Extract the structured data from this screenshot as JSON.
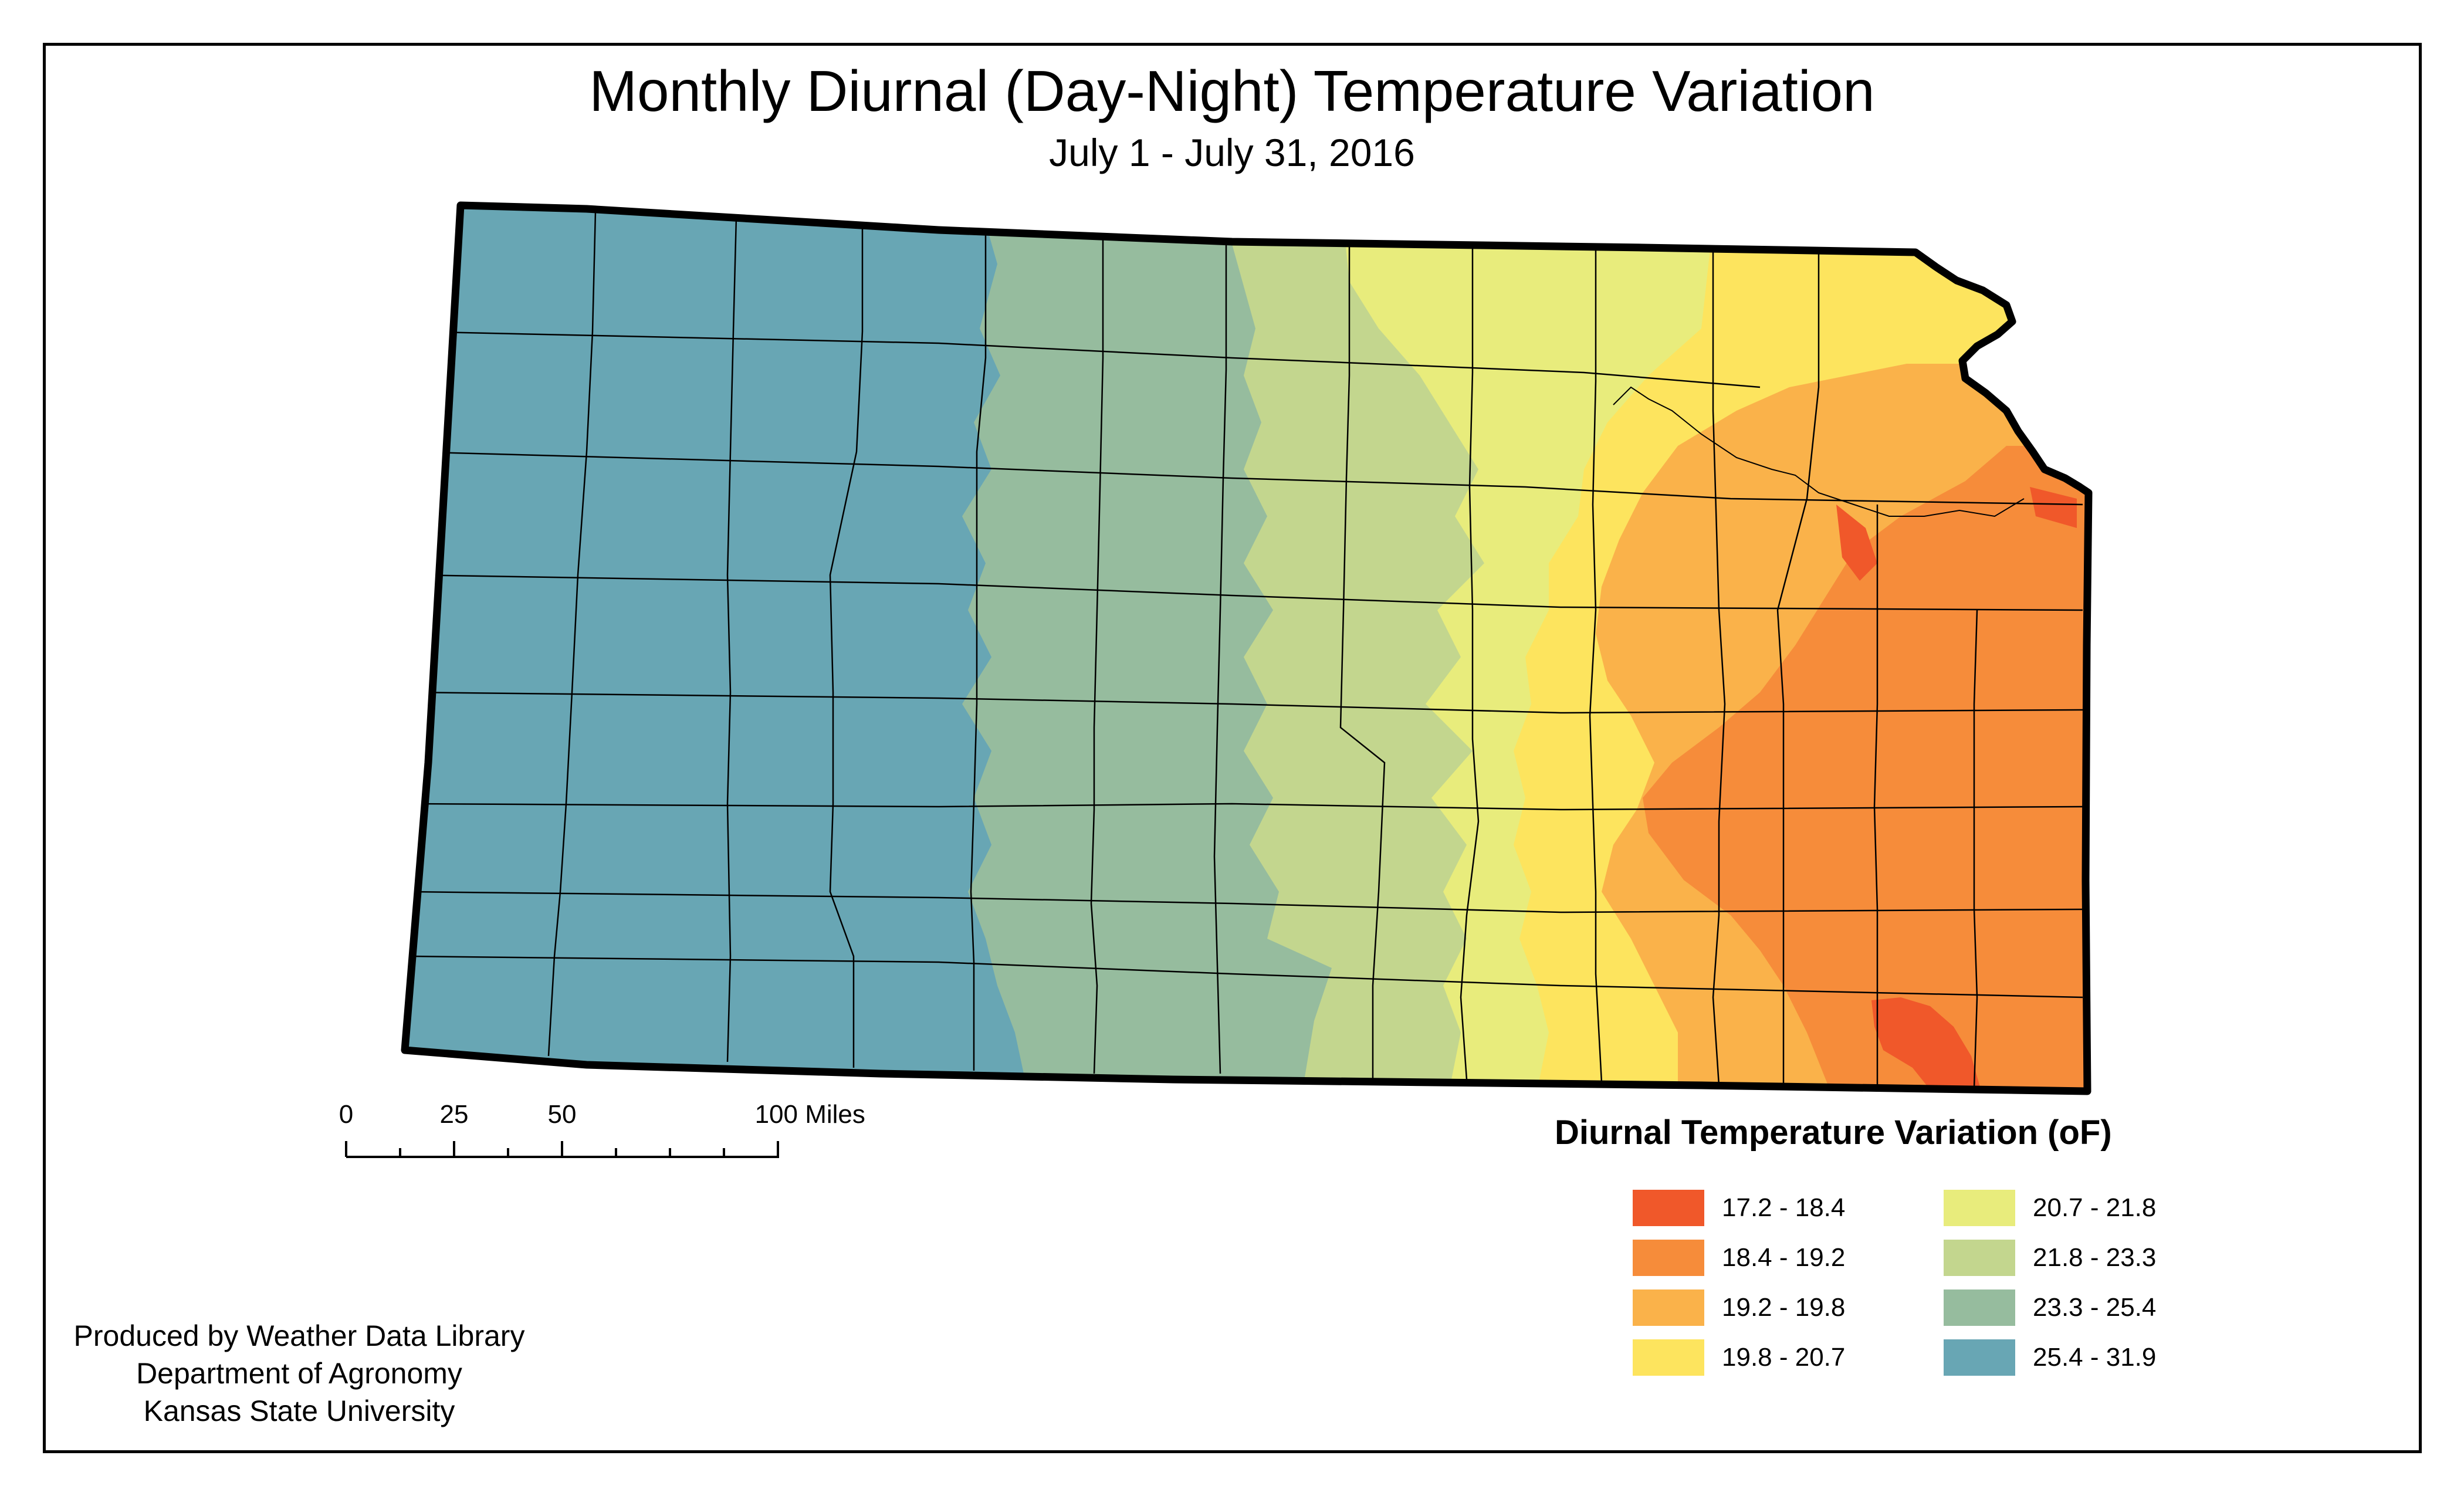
{
  "title": "Monthly Diurnal (Day-Night) Temperature Variation",
  "subtitle": "July 1 - July 31, 2016",
  "legend": {
    "title": "Diurnal Temperature Variation (oF)",
    "classes": [
      {
        "label": "17.2 - 18.4",
        "color": "#f0582a"
      },
      {
        "label": "18.4 - 19.2",
        "color": "#f68c3a"
      },
      {
        "label": "19.2 - 19.8",
        "color": "#fab24a"
      },
      {
        "label": "19.8 - 20.7",
        "color": "#fde45e"
      },
      {
        "label": "20.7 - 21.8",
        "color": "#e8ec7c"
      },
      {
        "label": "21.8 - 23.3",
        "color": "#c3d68e"
      },
      {
        "label": "23.3 - 25.4",
        "color": "#96bc9e"
      },
      {
        "label": "25.4 - 31.9",
        "color": "#68a6b4"
      }
    ]
  },
  "scale_bar": {
    "labels": [
      "0",
      "25",
      "50",
      "100 Miles"
    ]
  },
  "credits": {
    "line1": "Produced by Weather Data Library",
    "line2": "Department of Agronomy",
    "line3": "Kansas State University"
  }
}
